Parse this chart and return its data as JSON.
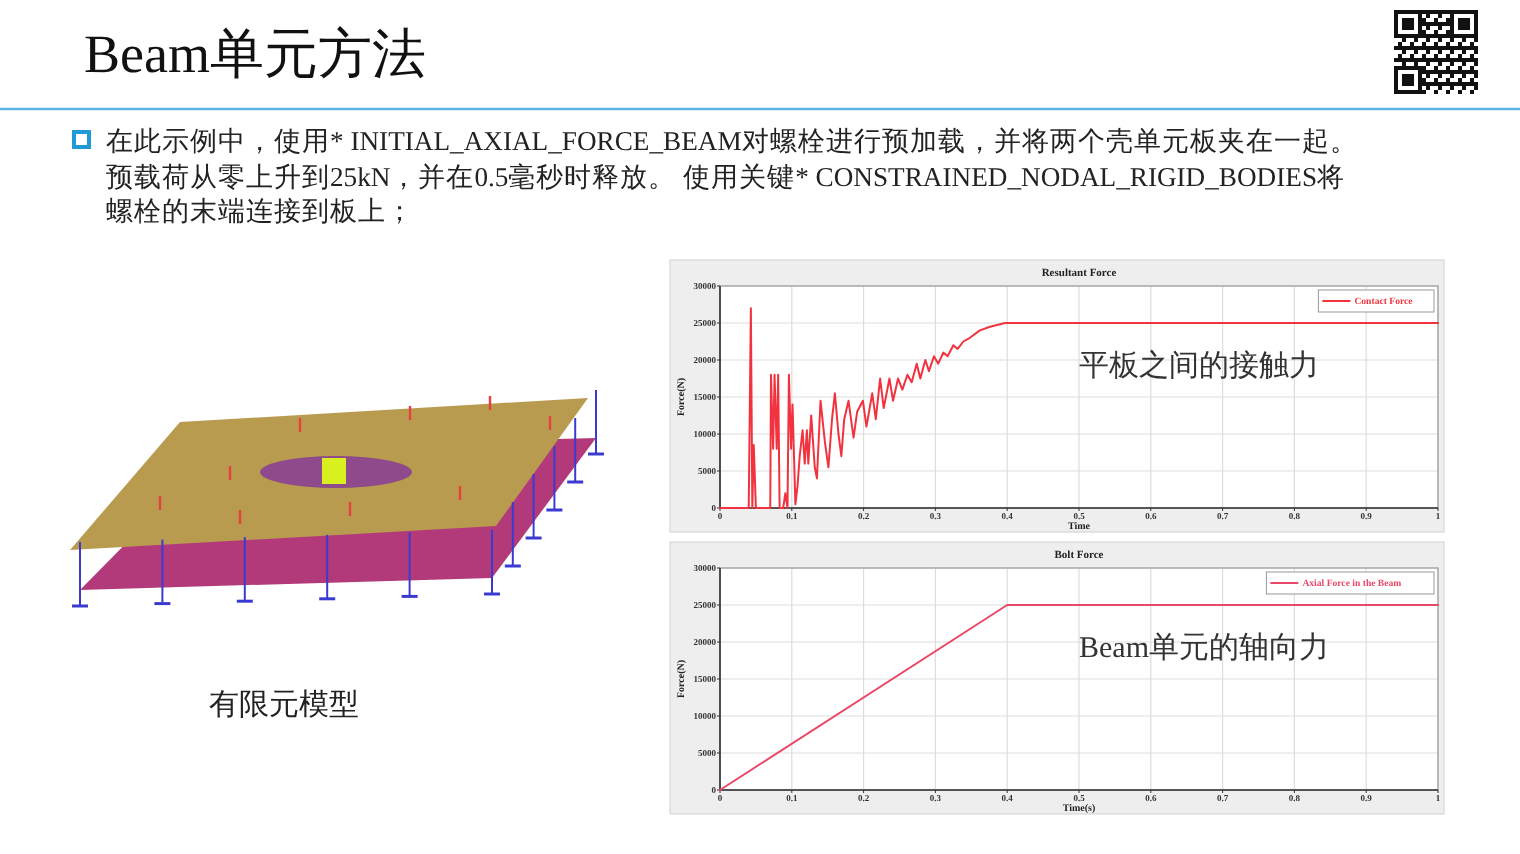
{
  "chart_data": [
    {
      "type": "other",
      "title": "Beam单元方法",
      "annotations": [
        "在此示例中，使用* INITIAL_AXIAL_FORCE_BEAM对螺栓进行预加载，并将两个壳单元板夹在一起。预载荷从零上升到25kN，并在0.5毫秒时释放。 使用关键* CONSTRAINED_NODAL_RIGID_BODIES将螺栓的末端连接到板上；",
        "有限元模型"
      ]
    },
    {
      "type": "line",
      "title": "Resultant Force",
      "xlabel": "Time",
      "ylabel": "Force(N)",
      "x": [
        0,
        0.04,
        0.043,
        0.045,
        0.047,
        0.05,
        0.07,
        0.071,
        0.074,
        0.076,
        0.079,
        0.081,
        0.083,
        0.088,
        0.091,
        0.094,
        0.096,
        0.099,
        0.101,
        0.105,
        0.108,
        0.111,
        0.115,
        0.118,
        0.121,
        0.123,
        0.127,
        0.132,
        0.135,
        0.14,
        0.146,
        0.151,
        0.156,
        0.16,
        0.165,
        0.169,
        0.173,
        0.179,
        0.186,
        0.191,
        0.199,
        0.204,
        0.212,
        0.217,
        0.223,
        0.228,
        0.236,
        0.241,
        0.248,
        0.254,
        0.261,
        0.267,
        0.274,
        0.279,
        0.286,
        0.291,
        0.298,
        0.304,
        0.311,
        0.317,
        0.325,
        0.331,
        0.339,
        0.348,
        0.362,
        0.376,
        0.397,
        1
      ],
      "series": [
        {
          "name": "Contact Force",
          "color": "#f2333f",
          "values": [
            0,
            0,
            27000,
            0,
            8500,
            0,
            0,
            18000,
            8000,
            18000,
            8000,
            18000,
            0,
            0,
            2000,
            0,
            18000,
            8000,
            14000,
            500,
            3000,
            7000,
            10500,
            6000,
            10500,
            6000,
            12500,
            5500,
            4000,
            14500,
            9000,
            5500,
            12000,
            15500,
            10000,
            7000,
            12000,
            14500,
            9500,
            13000,
            14500,
            11000,
            15500,
            12000,
            17500,
            13500,
            17500,
            14500,
            17500,
            16000,
            18000,
            17000,
            19500,
            17500,
            20000,
            18500,
            20500,
            19500,
            21000,
            20500,
            22000,
            21500,
            22500,
            23000,
            24000,
            24500,
            25000,
            25000
          ]
        }
      ],
      "xlim": [
        0,
        1
      ],
      "ylim": [
        0,
        30000
      ],
      "xticks": [
        0,
        0.1,
        0.2,
        0.3,
        0.4,
        0.5,
        0.6,
        0.7,
        0.8,
        0.9,
        1
      ],
      "yticks": [
        0,
        5000,
        10000,
        15000,
        20000,
        25000,
        30000
      ],
      "grid": true,
      "legend": "top right",
      "annotations": [
        "平板之间的接触力"
      ]
    },
    {
      "type": "line",
      "title": "Bolt Force",
      "xlabel": "Time(s)",
      "ylabel": "Force(N)",
      "x": [
        0,
        0.4,
        1
      ],
      "series": [
        {
          "name": "Axial Force in the Beam",
          "color": "#ea4868",
          "values": [
            0,
            25000,
            25000
          ]
        }
      ],
      "xlim": [
        0,
        1
      ],
      "ylim": [
        0,
        30000
      ],
      "xticks": [
        0,
        0.1,
        0.2,
        0.3,
        0.4,
        0.5,
        0.6,
        0.7,
        0.8,
        0.9,
        1
      ],
      "yticks": [
        0,
        5000,
        10000,
        15000,
        20000,
        25000,
        30000
      ],
      "grid": true,
      "legend": "top right",
      "annotations": [
        "Beam单元的轴向力"
      ]
    }
  ]
}
